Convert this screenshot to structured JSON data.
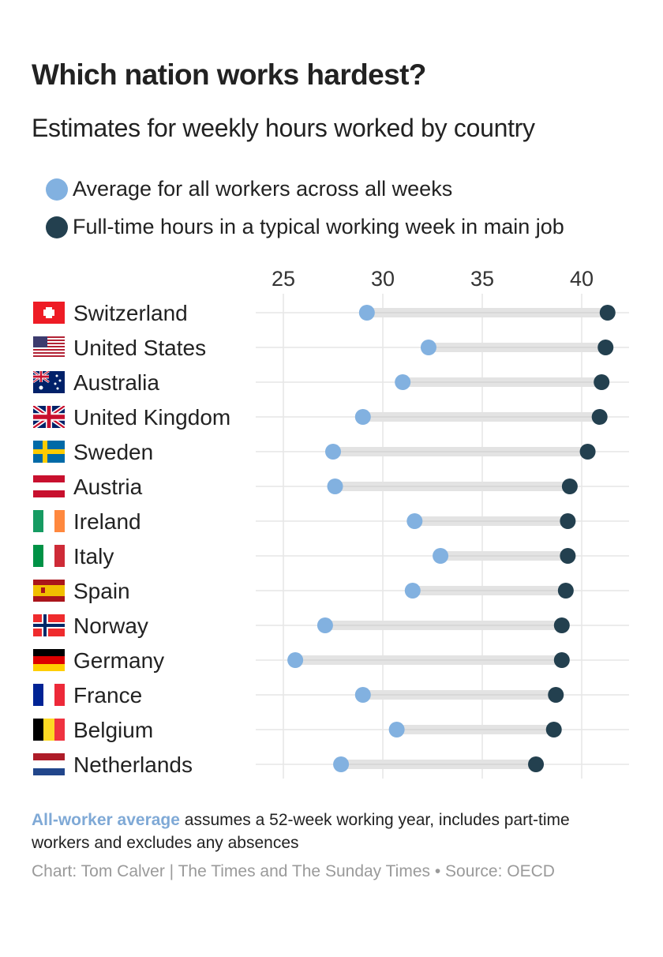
{
  "colors": {
    "average": "#82b1e0",
    "fulltime": "#23404f",
    "connector": "#e3e3e3",
    "grid": "#e6e6e6",
    "highlight": "#7fa9d6"
  },
  "chart_data": {
    "type": "dumbbell",
    "title": "Which nation works hardest?",
    "subtitle": "Estimates for weekly hours worked by country",
    "xlabel": "",
    "ylabel": "",
    "xlim": [
      23.6,
      42.3
    ],
    "x_ticks": [
      25,
      30,
      35,
      40
    ],
    "x_tick_labels": [
      "25",
      "30",
      "35",
      "40"
    ],
    "grid": true,
    "legend_position": "top-left",
    "legend": [
      {
        "key": "average",
        "label": "Average for all workers across all weeks"
      },
      {
        "key": "fulltime",
        "label": "Full-time hours in a typical working week in main job"
      }
    ],
    "categories": [
      "Switzerland",
      "United States",
      "Australia",
      "United Kingdom",
      "Sweden",
      "Austria",
      "Ireland",
      "Italy",
      "Spain",
      "Norway",
      "Germany",
      "France",
      "Belgium",
      "Netherlands"
    ],
    "flags": [
      "switzerland",
      "united-states",
      "australia",
      "united-kingdom",
      "sweden",
      "austria",
      "ireland",
      "italy",
      "spain",
      "norway",
      "germany",
      "france",
      "belgium",
      "netherlands"
    ],
    "series": [
      {
        "name": "Average for all workers across all weeks",
        "key": "average",
        "values": [
          29.2,
          32.3,
          31.0,
          29.0,
          27.5,
          27.6,
          31.6,
          32.9,
          31.5,
          27.1,
          25.6,
          29.0,
          30.7,
          27.9
        ]
      },
      {
        "name": "Full-time hours in a typical working week in main job",
        "key": "fulltime",
        "values": [
          41.3,
          41.2,
          41.0,
          40.9,
          40.3,
          39.4,
          39.3,
          39.3,
          39.2,
          39.0,
          39.0,
          38.7,
          38.6,
          37.7
        ]
      }
    ]
  },
  "footer": {
    "note_highlight": "All-worker average",
    "note_rest": " assumes a 52-week working year, includes part-time workers and excludes any absences",
    "credit": "Chart: Tom Calver | The Times and The Sunday Times • Source: OECD"
  }
}
